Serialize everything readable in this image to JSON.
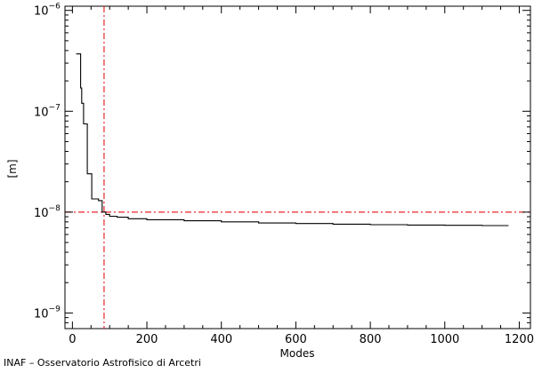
{
  "chart_data": {
    "type": "line",
    "title": "",
    "xlabel": "Modes",
    "ylabel": "[m]",
    "xlim": [
      -20,
      1230
    ],
    "ylim": [
      7e-10,
      1.1e-06
    ],
    "yscale": "log",
    "grid": false,
    "x_ticks": [
      0,
      200,
      400,
      600,
      800,
      1000,
      1200
    ],
    "x_tick_labels": [
      "0",
      "200",
      "400",
      "600",
      "800",
      "1000",
      "1200"
    ],
    "y_ticks": [
      1e-09,
      1e-08,
      1e-07,
      1e-06
    ],
    "y_tick_labels": [
      {
        "base": "10",
        "exp": "−9"
      },
      {
        "base": "10",
        "exp": "−8"
      },
      {
        "base": "10",
        "exp": "−7"
      },
      {
        "base": "10",
        "exp": "−6"
      }
    ],
    "series": [
      {
        "color": "#000000",
        "step": true,
        "x": [
          10,
          20,
          22,
          25,
          30,
          35,
          40,
          45,
          52,
          60,
          70,
          80,
          90,
          100,
          120,
          150,
          200,
          300,
          400,
          500,
          600,
          700,
          800,
          900,
          1000,
          1100,
          1170
        ],
        "y": [
          3.7e-07,
          3.7e-07,
          1.7e-07,
          1.2e-07,
          7.5e-08,
          7.5e-08,
          2.4e-08,
          2.4e-08,
          1.35e-08,
          1.35e-08,
          1.3e-08,
          1e-08,
          9.5e-09,
          9.1e-09,
          8.9e-09,
          8.6e-09,
          8.4e-09,
          8.2e-09,
          8e-09,
          7.8e-09,
          7.7e-09,
          7.6e-09,
          7.5e-09,
          7.45e-09,
          7.4e-09,
          7.35e-09,
          7.3e-09
        ]
      }
    ],
    "reference_lines": [
      {
        "orientation": "horizontal",
        "value": 1e-08,
        "color": "#e8262b",
        "style": "dash-dot"
      },
      {
        "orientation": "vertical",
        "value": 85,
        "color": "#e8262b",
        "style": "dash-dot"
      }
    ]
  },
  "footer": {
    "credit": "INAF – Osservatorio Astrofisico di Arcetri"
  }
}
